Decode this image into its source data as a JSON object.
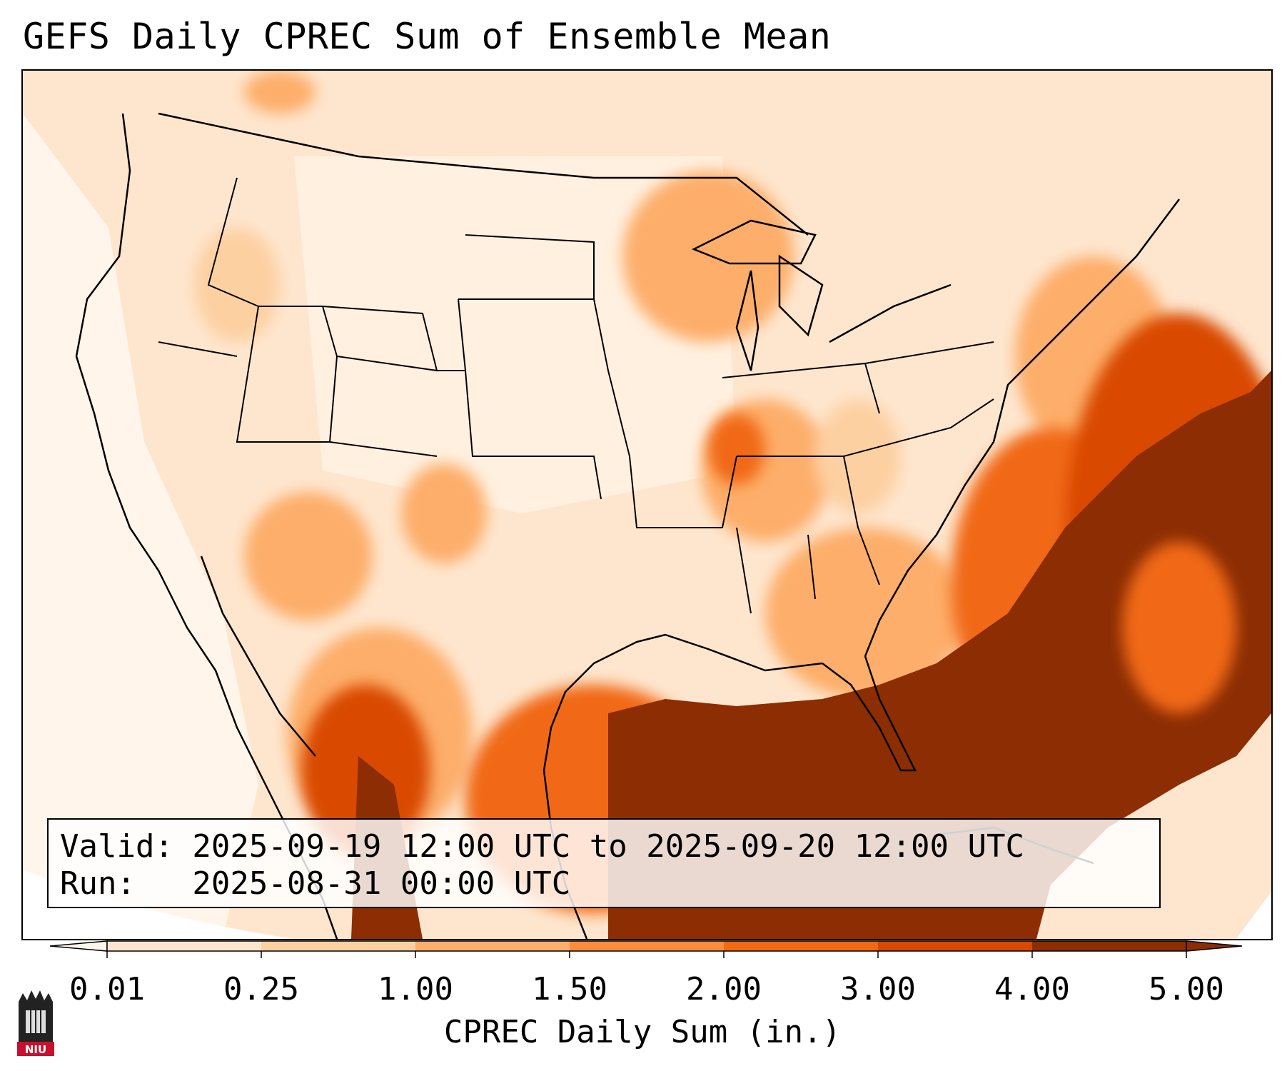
{
  "title": "GEFS Daily CPREC Sum of Ensemble Mean",
  "info": {
    "valid_line": "Valid: 2025-09-19 12:00 UTC to 2025-09-20 12:00 UTC",
    "run_line": "Run:   2025-08-31 00:00 UTC"
  },
  "colorbar": {
    "label": "CPREC Daily Sum (in.)",
    "ticks": [
      "0.01",
      "0.25",
      "1.00",
      "1.50",
      "2.00",
      "3.00",
      "4.00",
      "5.00"
    ],
    "colors": [
      "#fff5eb",
      "#fee6ce",
      "#fdd0a2",
      "#fdae6b",
      "#fd8d3c",
      "#f16913",
      "#d94801",
      "#8c2d04"
    ],
    "under_color": "#fff5eb",
    "over_color": "#8c2d04"
  },
  "logo": {
    "text": "NIU",
    "colors": {
      "banner": "#c8102e",
      "tower": "#222222"
    }
  },
  "map": {
    "projection": "Lambert Conformal",
    "region": "CONUS",
    "heavy_precip_regions": [
      "Gulf of Mexico",
      "Southeast U.S. coast",
      "Florida",
      "Western Atlantic",
      "Northern Mexico"
    ]
  }
}
